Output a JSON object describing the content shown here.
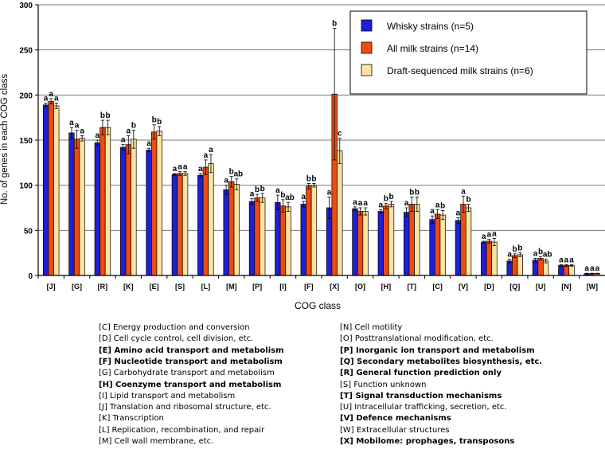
{
  "chart_data": {
    "type": "bar",
    "title": "",
    "xlabel": "COG class",
    "ylabel": "No. of genes in each COG class",
    "ylim": [
      0,
      300
    ],
    "yticks": [
      0,
      50,
      100,
      150,
      200,
      250,
      300
    ],
    "grid": true,
    "legend_position": "top-right",
    "categories": [
      "[J]",
      "[G]",
      "[R]",
      "[K]",
      "[E]",
      "[S]",
      "[L]",
      "[M]",
      "[P]",
      "[I]",
      "[F]",
      "[X]",
      "[O]",
      "[H]",
      "[T]",
      "[C]",
      "[V]",
      "[D]",
      "[Q]",
      "[U]",
      "[N]",
      "[W]"
    ],
    "series": [
      {
        "name": "Whisky strains (n=5)",
        "color": "#1f1fd6",
        "values": [
          189,
          158,
          147,
          142,
          139,
          112,
          111,
          95,
          82,
          81,
          79,
          75,
          74,
          71,
          70,
          62,
          61,
          37,
          16,
          17,
          11,
          2
        ],
        "errors": [
          2,
          6,
          3,
          3,
          2,
          1,
          2,
          5,
          3,
          8,
          3,
          12,
          2,
          2,
          5,
          4,
          3,
          1,
          2,
          2,
          1,
          0.5
        ],
        "labels": [
          "a",
          "a",
          "a",
          "a",
          "a",
          "a",
          "a",
          "a",
          "a",
          "a",
          "a",
          "a",
          "a",
          "a",
          "a",
          "a",
          "a",
          "a",
          "a",
          "a",
          "a",
          "a"
        ]
      },
      {
        "name": "All milk strains (n=14)",
        "color": "#ee4b10",
        "values": [
          193,
          151,
          164,
          145,
          159,
          113,
          120,
          104,
          86,
          77,
          99,
          201,
          71,
          77,
          79,
          68,
          79,
          38,
          22,
          19,
          11,
          2
        ],
        "errors": [
          3,
          10,
          8,
          10,
          8,
          2,
          8,
          6,
          4,
          7,
          3,
          73,
          4,
          3,
          8,
          5,
          9,
          2,
          2,
          2,
          1,
          0.5
        ],
        "labels": [
          "a",
          "a",
          "b",
          "a",
          "b",
          "a",
          "a",
          "b",
          "b",
          "b",
          "b",
          "b",
          "a",
          "b",
          "b",
          "a",
          "a",
          "a",
          "b",
          "b",
          "a",
          "a"
        ]
      },
      {
        "name": "Draft-sequenced milk strains (n=6)",
        "color": "#fde3a0",
        "values": [
          188,
          152,
          164,
          151,
          160,
          113,
          124,
          101,
          86,
          76,
          100,
          138,
          71,
          79,
          79,
          67,
          75,
          37,
          23,
          16,
          11,
          2
        ],
        "errors": [
          3,
          3,
          8,
          10,
          5,
          2,
          10,
          6,
          5,
          5,
          2,
          14,
          4,
          3,
          8,
          5,
          4,
          4,
          2,
          2,
          1,
          0.5
        ],
        "labels": [
          "a",
          "a",
          "b",
          "b",
          "b",
          "a",
          "a",
          "ab",
          "b",
          "ab",
          "b",
          "c",
          "a",
          "b",
          "b",
          "b",
          "b",
          "a",
          "b",
          "ab",
          "a",
          "a"
        ]
      }
    ]
  },
  "legend_title": "",
  "caption": {
    "left": [
      {
        "text": "[C] Energy production and conversion",
        "bold": false
      },
      {
        "text": "[D] Cell cycle control, cell division, etc.",
        "bold": false
      },
      {
        "text": "[E] Amino acid transport and metabolism",
        "bold": true
      },
      {
        "text": "[F] Nucleotide transport and metabolism",
        "bold": true
      },
      {
        "text": "[G] Carbohydrate transport and metabolism",
        "bold": false
      },
      {
        "text": "[H] Coenzyme transport and metabolism",
        "bold": true
      },
      {
        "text": "[I] Lipid transport and metabolism",
        "bold": false
      },
      {
        "text": "[J] Translation and ribosomal structure, etc.",
        "bold": false
      },
      {
        "text": "[K] Transcription",
        "bold": false
      },
      {
        "text": "[L] Replication, recombination, and repair",
        "bold": false
      },
      {
        "text": "[M] Cell wall membrane, etc.",
        "bold": false
      }
    ],
    "right": [
      {
        "text": "[N] Cell motility",
        "bold": false
      },
      {
        "text": "[O] Posttranslational modification, etc.",
        "bold": false
      },
      {
        "text": "[P] Inorganic ion transport and metabolism",
        "bold": true
      },
      {
        "text": "[Q] Secondary metabolites biosynthesis, etc.",
        "bold": true
      },
      {
        "text": "[R] General function prediction only",
        "bold": true
      },
      {
        "text": "[S] Function unknown",
        "bold": false
      },
      {
        "text": "[T] Signal transduction mechanisms",
        "bold": true
      },
      {
        "text": "[U] Intracellular trafficking, secretion, etc.",
        "bold": false
      },
      {
        "text": "[V] Defence mechanisms",
        "bold": true
      },
      {
        "text": "[W] Extracellular structures",
        "bold": false
      },
      {
        "text": "[X] Mobilome: prophages, transposons",
        "bold": true
      }
    ]
  }
}
